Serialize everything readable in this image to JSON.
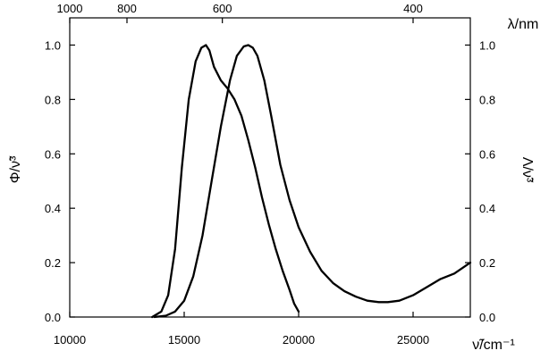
{
  "chart_data": {
    "type": "line",
    "title": "",
    "xlabel": "ν̃/cm⁻¹",
    "ylabel_left": "Φ/ν̃³",
    "ylabel_right": "Λ/ν̃³",
    "x2label": "λ/nm",
    "xlim": [
      10000,
      27500
    ],
    "ylim": [
      0.0,
      1.1
    ],
    "grid": false,
    "legend": "none",
    "x_ticks": [
      10000,
      15000,
      20000,
      25000
    ],
    "y_ticks": [
      "0.0",
      "0.2",
      "0.4",
      "0.6",
      "0.8",
      "1.0"
    ],
    "x2_ticks": [
      {
        "label": "1000",
        "nm": 1000
      },
      {
        "label": "800",
        "nm": 800
      },
      {
        "label": "600",
        "nm": 600
      },
      {
        "label": "400",
        "nm": 400
      }
    ],
    "series": [
      {
        "x": [
          13600,
          14000,
          14300,
          14600,
          14900,
          15200,
          15500,
          15750,
          15950,
          16100,
          16300,
          16600,
          16900,
          17200,
          17500,
          17800,
          18100,
          18400,
          18700,
          19000,
          19300,
          19600,
          19800,
          20000
        ],
        "y": [
          0.0,
          0.02,
          0.08,
          0.25,
          0.55,
          0.8,
          0.94,
          0.99,
          1.0,
          0.98,
          0.92,
          0.87,
          0.84,
          0.8,
          0.74,
          0.65,
          0.55,
          0.44,
          0.34,
          0.25,
          0.17,
          0.1,
          0.05,
          0.02
        ]
      },
      {
        "x": [
          13700,
          14200,
          14600,
          15000,
          15400,
          15800,
          16200,
          16600,
          17000,
          17300,
          17600,
          17800,
          18000,
          18200,
          18500,
          18800,
          19200,
          19600,
          20000,
          20500,
          21000,
          21500,
          22000,
          22500,
          23000,
          23500,
          23900,
          24400,
          25000,
          25600,
          26200,
          26800,
          27500
        ],
        "y": [
          0.0,
          0.005,
          0.02,
          0.06,
          0.15,
          0.3,
          0.5,
          0.7,
          0.87,
          0.96,
          0.995,
          1.0,
          0.99,
          0.96,
          0.87,
          0.74,
          0.56,
          0.43,
          0.33,
          0.24,
          0.17,
          0.125,
          0.095,
          0.075,
          0.06,
          0.055,
          0.055,
          0.06,
          0.08,
          0.11,
          0.14,
          0.16,
          0.2
        ]
      }
    ]
  }
}
